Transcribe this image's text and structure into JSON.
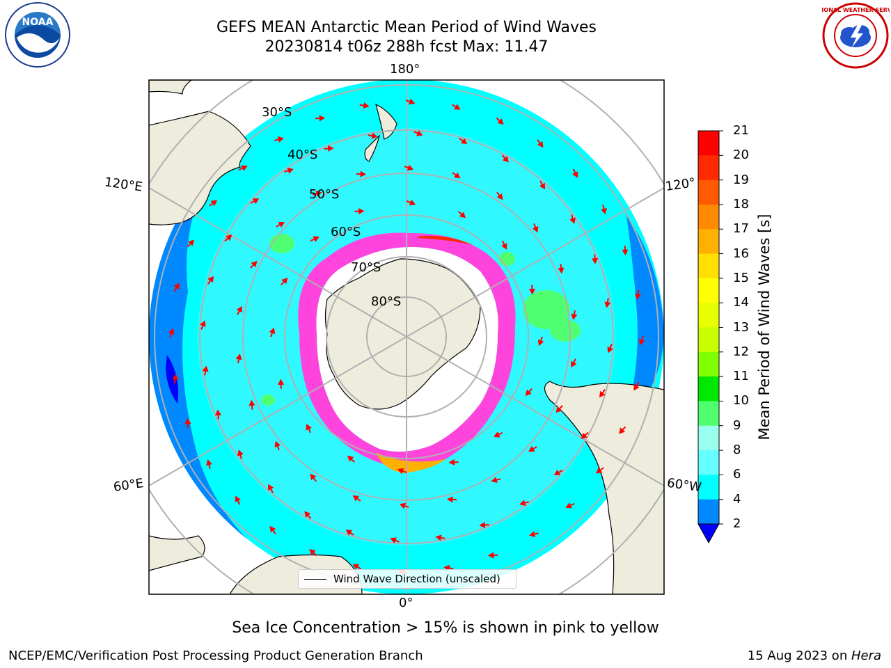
{
  "header": {
    "title_line1": "GEFS MEAN Antarctic Mean Period of Wind Waves",
    "title_line2": "20230814 t06z 288h fcst   Max: 11.47"
  },
  "logos": {
    "left": {
      "icon": "noaa-logo-icon",
      "text": "NOAA"
    },
    "right": {
      "icon": "nws-logo-icon",
      "text": "NATIONAL WEATHER SERVICE"
    }
  },
  "map": {
    "projection": "south-polar-stereographic",
    "longitude_labels": {
      "top": "180°",
      "right_upper": "120°",
      "right_lower": "60°W",
      "left_upper": "120°E",
      "left_lower": "60°E",
      "bottom": "0°"
    },
    "latitude_labels": [
      "30°S",
      "40°S",
      "50°S",
      "60°S",
      "70°S",
      "80°S"
    ],
    "colors": {
      "land": "#eeecdc",
      "ocean_default": "#00ffff",
      "sea_ice_edge": "#ff44dd",
      "arrows": "#ff0000",
      "grid": "#b0b0b0"
    }
  },
  "colorbar": {
    "title": "Mean Period of Wind Waves [s]",
    "ticks": [
      "21",
      "20",
      "19",
      "18",
      "17",
      "16",
      "15",
      "14",
      "13",
      "12",
      "11",
      "10",
      "9",
      "8",
      "6",
      "4",
      "2"
    ],
    "colors": [
      "#ff0000",
      "#ff2a00",
      "#ff5a00",
      "#ff8a00",
      "#ffb000",
      "#ffe000",
      "#ffff00",
      "#e8ff00",
      "#c8ff00",
      "#80ff00",
      "#00e800",
      "#50ff70",
      "#99ffee",
      "#66ffff",
      "#00ffff",
      "#0088ff",
      "#0000ff"
    ]
  },
  "legend": {
    "label": "Wind Wave Direction (unscaled)"
  },
  "subtitle": "Sea Ice Concentration > 15% is shown in pink to yellow",
  "footer": {
    "left": "NCEP/EMC/Verification Post Processing Product Generation Branch",
    "right_prefix": "15 Aug 2023 on ",
    "right_machine": "Hera"
  }
}
